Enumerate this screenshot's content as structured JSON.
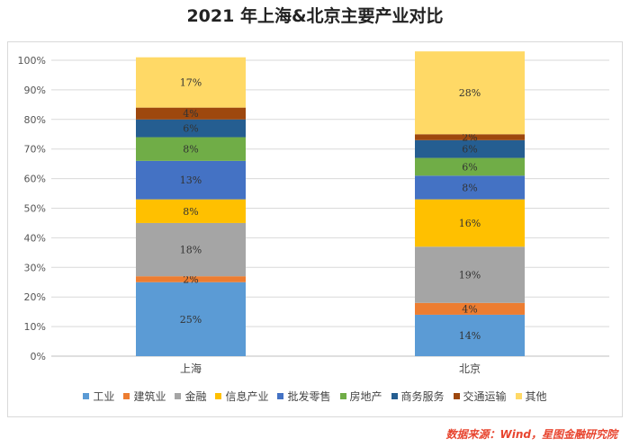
{
  "chart_data": {
    "type": "bar",
    "stacked": true,
    "title": "2021 年上海&北京主要产业对比",
    "categories": [
      "上海",
      "北京"
    ],
    "yticks": [
      "0%",
      "10%",
      "20%",
      "30%",
      "40%",
      "50%",
      "60%",
      "70%",
      "80%",
      "90%",
      "100%"
    ],
    "ylim": [
      0,
      100
    ],
    "series": [
      {
        "name": "工业",
        "color": "#5b9bd5",
        "values": [
          25,
          14
        ],
        "labels": [
          "25%",
          "14%"
        ]
      },
      {
        "name": "建筑业",
        "color": "#ed7d31",
        "values": [
          2,
          4
        ],
        "labels": [
          "2%",
          "4%"
        ]
      },
      {
        "name": "金融",
        "color": "#a5a5a5",
        "values": [
          18,
          19
        ],
        "labels": [
          "18%",
          "19%"
        ]
      },
      {
        "name": "信息产业",
        "color": "#ffc000",
        "values": [
          8,
          16
        ],
        "labels": [
          "8%",
          "16%"
        ]
      },
      {
        "name": "批发零售",
        "color": "#4472c4",
        "values": [
          13,
          8
        ],
        "labels": [
          "13%",
          "8%"
        ]
      },
      {
        "name": "房地产",
        "color": "#70ad47",
        "values": [
          8,
          6
        ],
        "labels": [
          "8%",
          "6%"
        ]
      },
      {
        "name": "商务服务",
        "color": "#255e91",
        "values": [
          6,
          6
        ],
        "labels": [
          "6%",
          "6%"
        ]
      },
      {
        "name": "交通运输",
        "color": "#9e480e",
        "values": [
          4,
          2
        ],
        "labels": [
          "4%",
          "2%"
        ]
      },
      {
        "name": "其他",
        "color": "#ffd966",
        "values": [
          17,
          28
        ],
        "labels": [
          "17%",
          "28%"
        ]
      }
    ],
    "legend_position": "bottom"
  },
  "source": "数据来源：Wind，星图金融研究院"
}
